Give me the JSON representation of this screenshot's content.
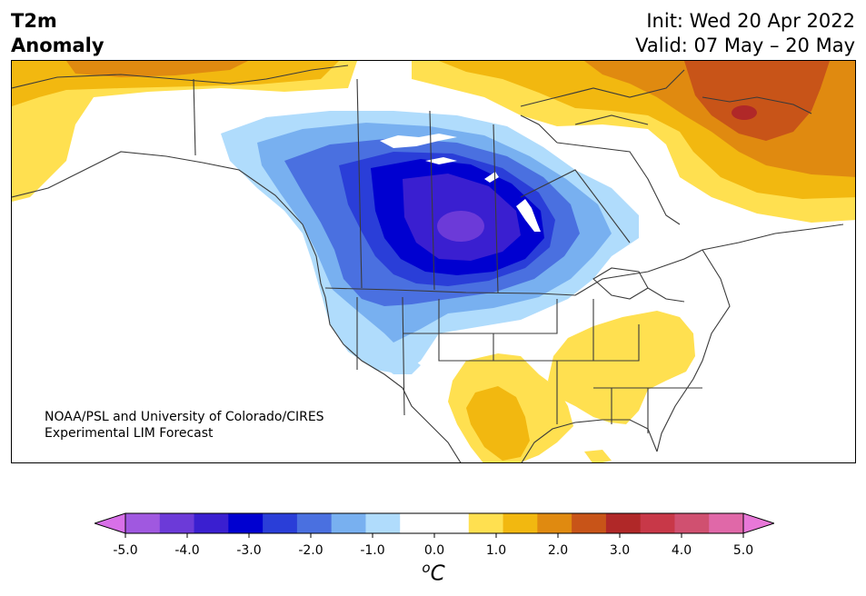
{
  "header": {
    "variable": "T2m",
    "field": "Anomaly",
    "init": "Init: Wed 20 Apr 2022",
    "valid": "Valid: 07 May – 20 May"
  },
  "credit": {
    "line1": "NOAA/PSL and University of Colorado/CIRES",
    "line2": "Experimental LIM Forecast"
  },
  "colorbar": {
    "ticks": [
      "-5.0",
      "-4.0",
      "-3.0",
      "-2.0",
      "-1.0",
      "0.0",
      "1.0",
      "2.0",
      "3.0",
      "4.0",
      "5.0"
    ],
    "units_base": "o",
    "units_letter": "C",
    "under_color": "#d870e8",
    "over_color": "#e878d8",
    "colors": [
      "#a058e0",
      "#6c3ad8",
      "#3a1fd0",
      "#0000d0",
      "#2a3ed8",
      "#4a70e0",
      "#78b0f0",
      "#b0dcfc",
      "#ffffff",
      "#ffffff",
      "#ffe050",
      "#f2b810",
      "#e08a10",
      "#c85418",
      "#b02828",
      "#c83848",
      "#d05070",
      "#e068a8"
    ]
  },
  "map": {
    "colors": {
      "cold1": "#b0dcfc",
      "cold2": "#78b0f0",
      "cold3": "#4a70e0",
      "cold4": "#2a3ed8",
      "cold5": "#0000d0",
      "cold6": "#3a1fd0",
      "cold7": "#6c3ad8",
      "warm1": "#ffe050",
      "warm2": "#f2b810",
      "warm3": "#e08a10",
      "warm4": "#c85418",
      "warm5": "#b02828",
      "line": "#3a3a3a"
    }
  }
}
